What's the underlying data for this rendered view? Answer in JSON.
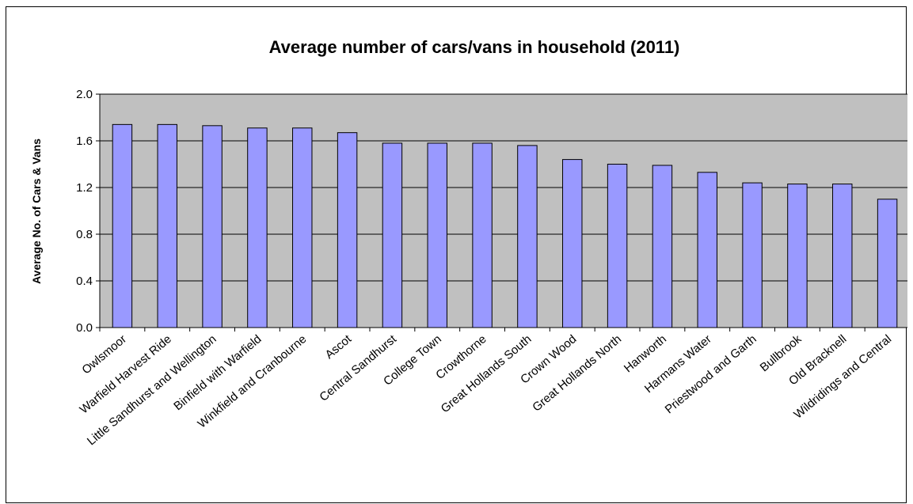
{
  "chart_data": {
    "type": "bar",
    "title": "Average number of cars/vans in household (2011)",
    "xlabel": "",
    "ylabel": "Average No. of Cars & Vans",
    "ylim": [
      0,
      2.0
    ],
    "yticks": [
      "0.0",
      "0.4",
      "0.8",
      "1.2",
      "1.6",
      "2.0"
    ],
    "ytick_values": [
      0,
      0.4,
      0.8,
      1.2,
      1.6,
      2.0
    ],
    "grid": true,
    "legend": "none",
    "categories": [
      "Owlsmoor",
      "Warfield Harvest Ride",
      "Little Sandhurst and Wellington",
      "Binfield with Warfield",
      "Winkfield and Cranbourne",
      "Ascot",
      "Central Sandhurst",
      "College Town",
      "Crowthorne",
      "Great Hollands South",
      "Crown Wood",
      "Great Hollands North",
      "Hanworth",
      "Harmans Water",
      "Priestwood and Garth",
      "Bullbrook",
      "Old Bracknell",
      "Wildridings and Central"
    ],
    "values": [
      1.74,
      1.74,
      1.73,
      1.71,
      1.71,
      1.67,
      1.58,
      1.58,
      1.58,
      1.56,
      1.44,
      1.4,
      1.39,
      1.33,
      1.24,
      1.23,
      1.23,
      1.1
    ],
    "colors": {
      "bar_fill": "#9999ff",
      "bar_stroke": "#000000",
      "plot_background": "#c0c0c0",
      "gridline": "#000000"
    }
  }
}
